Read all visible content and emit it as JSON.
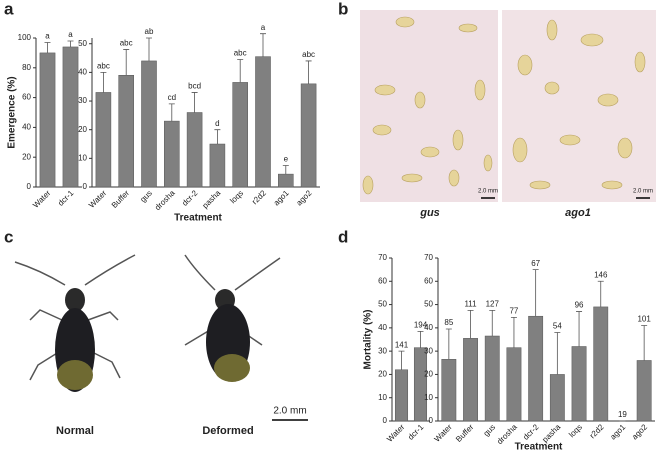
{
  "panels": [
    "a",
    "b",
    "c",
    "d"
  ],
  "photos": {
    "b": {
      "labels": [
        "gus",
        "ago1"
      ],
      "scale": "2.0 mm"
    },
    "c": {
      "labels": [
        "Normal",
        "Deformed"
      ],
      "scale": "2.0 mm"
    }
  },
  "chart_data": [
    {
      "type": "bar",
      "ylabel": "Emergence (%)",
      "color": "#808080",
      "categories": [
        "Water",
        "dcr-1"
      ],
      "values": [
        90,
        94
      ],
      "errors": [
        7,
        4
      ],
      "annotations": [
        "a",
        "a"
      ],
      "ylim": [
        0,
        100
      ],
      "yticks": [
        0,
        20,
        40,
        60,
        80,
        100
      ]
    },
    {
      "type": "bar",
      "xlabel": "Treatment",
      "color": "#808080",
      "categories": [
        "Water",
        "Buffer",
        "gus",
        "drosha",
        "dcr-2",
        "pasha",
        "loqs",
        "r2d2",
        "ago1",
        "ago2"
      ],
      "values": [
        33,
        39,
        44,
        23,
        26,
        15,
        36.5,
        45.5,
        4.5,
        36
      ],
      "errors": [
        7,
        9,
        8,
        6,
        7,
        5,
        8,
        8,
        3,
        8
      ],
      "annotations": [
        "abc",
        "abc",
        "ab",
        "cd",
        "bcd",
        "d",
        "abc",
        "a",
        "e",
        "abc"
      ],
      "ylim": [
        0,
        52
      ],
      "yticks": [
        0,
        10,
        20,
        30,
        40,
        50
      ]
    },
    {
      "type": "bar",
      "ylabel": "Mortality (%)",
      "color": "#808080",
      "categories": [
        "Water",
        "dcr-1"
      ],
      "values": [
        22,
        31.5
      ],
      "errors": [
        8,
        7
      ],
      "annotations": [
        "141",
        "194"
      ],
      "ylim": [
        0,
        70
      ],
      "yticks": [
        0,
        10,
        20,
        30,
        40,
        50,
        60,
        70
      ]
    },
    {
      "type": "bar",
      "xlabel": "Treatment",
      "color": "#808080",
      "categories": [
        "Water",
        "Buffer",
        "gus",
        "drosha",
        "dcr-2",
        "pasha",
        "loqs",
        "r2d2",
        "ago1",
        "ago2"
      ],
      "values": [
        26.5,
        35.5,
        36.5,
        31.5,
        45,
        20,
        32,
        49,
        0,
        26
      ],
      "errors": [
        13,
        12,
        11,
        13,
        20,
        18,
        15,
        11,
        0,
        15
      ],
      "annotations": [
        "85",
        "111",
        "127",
        "77",
        "67",
        "54",
        "96",
        "146",
        "19",
        "101"
      ],
      "ylim": [
        0,
        70
      ],
      "yticks": [
        0,
        10,
        20,
        30,
        40,
        50,
        60,
        70
      ]
    }
  ]
}
